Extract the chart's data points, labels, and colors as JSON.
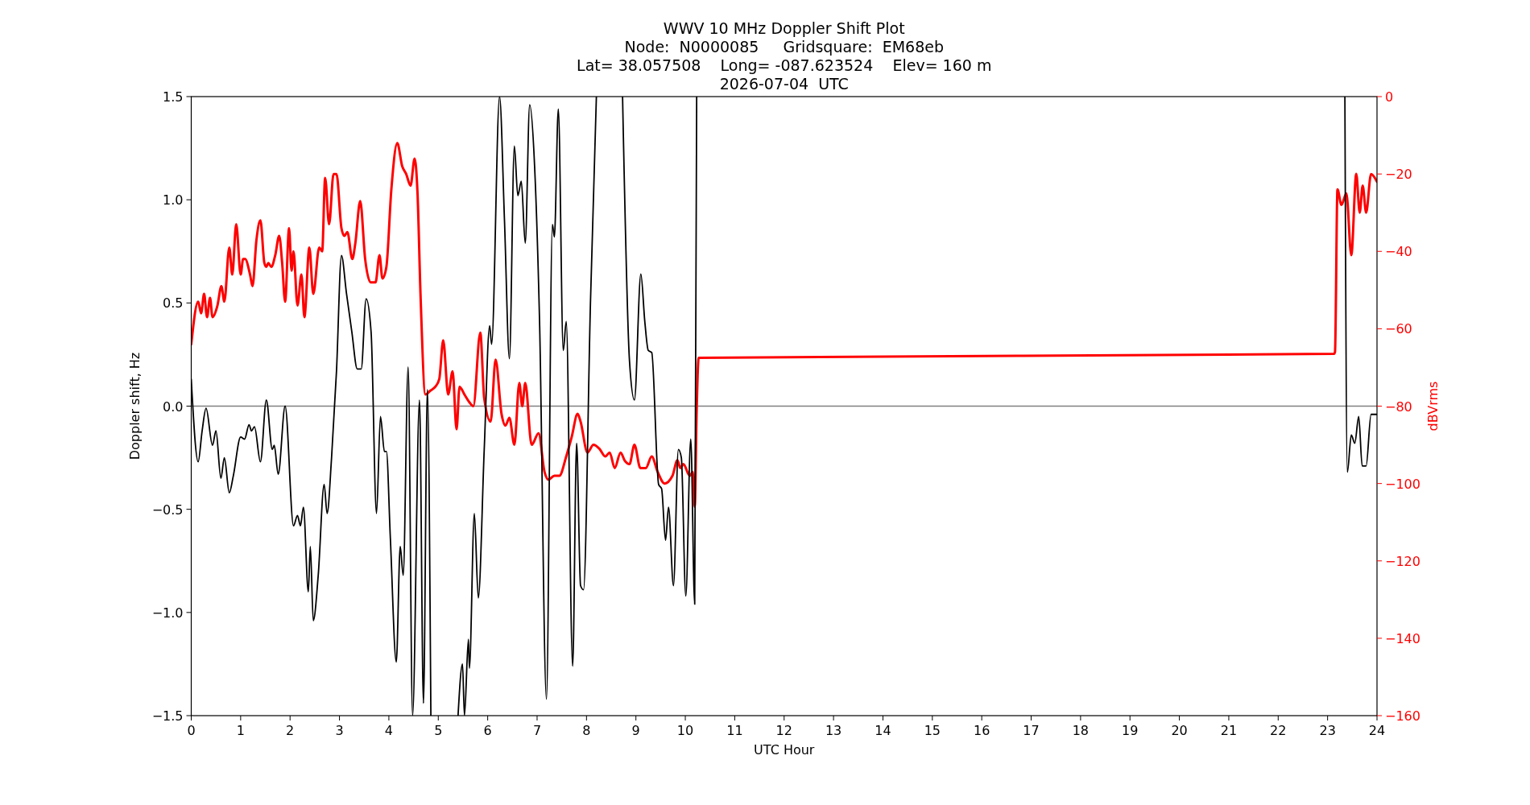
{
  "chart_data": {
    "type": "line",
    "title": "WWV 10 MHz Doppler Shift Plot",
    "subtitle": "Node:  N0000085     Gridsquare:  EM68eb\nLat= 38.057508    Long= -087.623524    Elev= 160 m\n2026-07-04  UTC",
    "xlabel": "UTC Hour",
    "ylabel": "Doppler shift, Hz",
    "y2label": "dBVrms",
    "xlim": [
      0,
      24
    ],
    "xticks": [
      0,
      1,
      2,
      3,
      4,
      5,
      6,
      7,
      8,
      9,
      10,
      11,
      12,
      13,
      14,
      15,
      16,
      17,
      18,
      19,
      20,
      21,
      22,
      23,
      24
    ],
    "ylim": [
      -1.5,
      1.5
    ],
    "yticks": [
      {
        "value": -1.5,
        "label": "−1.5"
      },
      {
        "value": -1.0,
        "label": "−1.0"
      },
      {
        "value": -0.5,
        "label": "−0.5"
      },
      {
        "value": 0,
        "label": "0.0"
      },
      {
        "value": 0.5,
        "label": "0.5"
      },
      {
        "value": 1.0,
        "label": "1.0"
      },
      {
        "value": 1.5,
        "label": "1.5"
      }
    ],
    "y2lim": [
      -160,
      0
    ],
    "y2ticks": [
      {
        "value": -160,
        "label": "−160"
      },
      {
        "value": -140,
        "label": "−140"
      },
      {
        "value": -120,
        "label": "−120"
      },
      {
        "value": -100,
        "label": "−100"
      },
      {
        "value": -80,
        "label": "−80"
      },
      {
        "value": -60,
        "label": "−60"
      },
      {
        "value": -40,
        "label": "−40"
      },
      {
        "value": -20,
        "label": "−20"
      },
      {
        "value": 0,
        "label": "0"
      }
    ],
    "ref_lines": [
      {
        "axis": "y",
        "value": 0,
        "color": "#808080"
      }
    ],
    "series": [
      {
        "color": "#ff0000",
        "axis": "y2",
        "x": [
          0,
          0.14,
          0.2,
          0.26,
          0.32,
          0.38,
          0.43,
          0.53,
          0.61,
          0.67,
          0.77,
          0.83,
          0.91,
          1.0,
          1.05,
          1.09,
          1.19,
          1.24,
          1.32,
          1.4,
          1.48,
          1.52,
          1.56,
          1.62,
          1.7,
          1.78,
          1.84,
          1.9,
          1.98,
          2.03,
          2.07,
          2.15,
          2.23,
          2.29,
          2.39,
          2.47,
          2.59,
          2.65,
          2.71,
          2.79,
          2.88,
          2.94,
          3.04,
          3.1,
          3.16,
          3.26,
          3.32,
          3.42,
          3.52,
          3.63,
          3.73,
          3.81,
          3.87,
          3.95,
          4.05,
          4.17,
          4.27,
          4.35,
          4.44,
          4.52,
          4.58,
          4.64,
          4.74,
          4.84,
          4.94,
          5.02,
          5.1,
          5.2,
          5.29,
          5.37,
          5.43,
          5.53,
          5.63,
          5.71,
          5.85,
          5.93,
          6.06,
          6.16,
          6.28,
          6.36,
          6.44,
          6.54,
          6.64,
          6.7,
          6.76,
          6.89,
          7.03,
          7.15,
          7.23,
          7.35,
          7.45,
          7.59,
          7.7,
          7.82,
          7.88,
          8.02,
          8.14,
          8.26,
          8.38,
          8.47,
          8.57,
          8.69,
          8.77,
          8.87,
          8.97,
          9.09,
          9.2,
          9.32,
          9.44,
          9.58,
          9.74,
          9.84,
          9.9,
          9.96,
          10.09,
          10.15,
          10.19,
          10.23,
          10.27,
          23.13,
          23.15,
          23.2,
          23.28,
          23.38,
          23.48,
          23.58,
          23.65,
          23.71,
          23.78,
          23.88,
          24
        ],
        "values": [
          -64,
          -53,
          -56,
          -51,
          -57,
          -52,
          -57,
          -54,
          -49,
          -53,
          -39,
          -46,
          -33,
          -46,
          -42,
          -42,
          -46,
          -49,
          -37,
          -32,
          -43,
          -44,
          -43,
          -44,
          -41,
          -36,
          -43,
          -53,
          -34,
          -45,
          -40,
          -54,
          -46,
          -57,
          -39,
          -51,
          -39,
          -40,
          -21,
          -33,
          -20,
          -20,
          -34,
          -36,
          -35,
          -42,
          -38,
          -27,
          -42,
          -48,
          -48,
          -41,
          -47,
          -44,
          -24,
          -12,
          -18,
          -20,
          -23,
          -16,
          -25,
          -51,
          -77,
          -76,
          -75,
          -73,
          -63,
          -77,
          -71,
          -86,
          -75,
          -77,
          -79,
          -80,
          -61,
          -78,
          -84,
          -68,
          -82,
          -85,
          -83,
          -90,
          -74,
          -80,
          -74,
          -90,
          -87,
          -97,
          -99,
          -98,
          -98,
          -93,
          -88,
          -82,
          -84,
          -92,
          -90,
          -91,
          -93,
          -92,
          -96,
          -92,
          -94,
          -95,
          -90,
          -96,
          -96,
          -93,
          -97,
          -100,
          -98,
          -94,
          -96,
          -95,
          -98,
          -97,
          -106,
          -81,
          -67.5,
          -66.5,
          -66,
          -24,
          -28,
          -25,
          -41,
          -20,
          -30,
          -23,
          -30,
          -20,
          -22
        ]
      },
      {
        "color": "#000000",
        "x": [
          0,
          0.14,
          0.22,
          0.3,
          0.43,
          0.5,
          0.6,
          0.67,
          0.77,
          0.85,
          1.0,
          1.08,
          1.17,
          1.22,
          1.28,
          1.4,
          1.52,
          1.64,
          1.68,
          1.76,
          1.9,
          2.07,
          2.15,
          2.21,
          2.27,
          2.37,
          2.41,
          2.47,
          2.57,
          2.69,
          2.75,
          2.84,
          2.94,
          3.04,
          3.14,
          3.25,
          3.36,
          3.44,
          3.54,
          3.64,
          3.75,
          3.83,
          3.91,
          3.95,
          4.03,
          4.15,
          4.23,
          4.29,
          4.39,
          4.48,
          4.62,
          4.7,
          4.78,
          4.85,
          5.1,
          5.4,
          5.49,
          5.53,
          5.61,
          5.63,
          5.73,
          5.81,
          5.93,
          6.04,
          6.08,
          6.24,
          6.34,
          6.44,
          6.54,
          6.61,
          6.68,
          6.76,
          6.85,
          6.95,
          7.05,
          7.19,
          7.31,
          7.35,
          7.43,
          7.53,
          7.59,
          7.72,
          7.8,
          7.88,
          7.94,
          8.08,
          8.2,
          8.45,
          8.73,
          8.87,
          8.97,
          9.1,
          9.18,
          9.25,
          9.32,
          9.46,
          9.52,
          9.6,
          9.66,
          9.76,
          9.86,
          9.92,
          10.01,
          10.11,
          10.19,
          10.23,
          16,
          23.35,
          23.4,
          23.48,
          23.55,
          23.63,
          23.7,
          23.78,
          23.88,
          24
        ],
        "values": [
          0.13,
          -0.27,
          -0.12,
          -0.01,
          -0.19,
          -0.12,
          -0.35,
          -0.25,
          -0.42,
          -0.34,
          -0.15,
          -0.16,
          -0.09,
          -0.12,
          -0.1,
          -0.27,
          0.03,
          -0.21,
          -0.19,
          -0.33,
          0.0,
          -0.58,
          -0.53,
          -0.58,
          -0.49,
          -0.9,
          -0.68,
          -1.04,
          -0.82,
          -0.38,
          -0.52,
          -0.25,
          0.17,
          0.73,
          0.55,
          0.36,
          0.18,
          0.18,
          0.52,
          0.36,
          -0.52,
          -0.05,
          -0.22,
          -0.22,
          -0.64,
          -1.24,
          -0.68,
          -0.82,
          0.19,
          -1.5,
          0.03,
          -1.44,
          0.08,
          -1.5,
          null,
          -1.5,
          -1.25,
          -1.5,
          -1.13,
          -1.27,
          -0.52,
          -0.93,
          -0.21,
          0.39,
          0.3,
          1.5,
          0.9,
          0.23,
          1.26,
          1.02,
          1.09,
          0.79,
          1.46,
          1.16,
          0.41,
          -1.42,
          0.88,
          0.82,
          1.44,
          0.27,
          0.41,
          -1.26,
          -0.18,
          -0.87,
          -0.89,
          0.5,
          1.5,
          null,
          1.5,
          0.22,
          0.03,
          0.64,
          0.41,
          0.27,
          0.26,
          -0.38,
          -0.4,
          -0.65,
          -0.49,
          -0.87,
          -0.21,
          -0.25,
          -0.92,
          -0.16,
          -0.96,
          1.5,
          null,
          1.5,
          -0.32,
          -0.14,
          -0.18,
          -0.05,
          -0.29,
          -0.29,
          -0.04,
          -0.04
        ]
      }
    ]
  }
}
